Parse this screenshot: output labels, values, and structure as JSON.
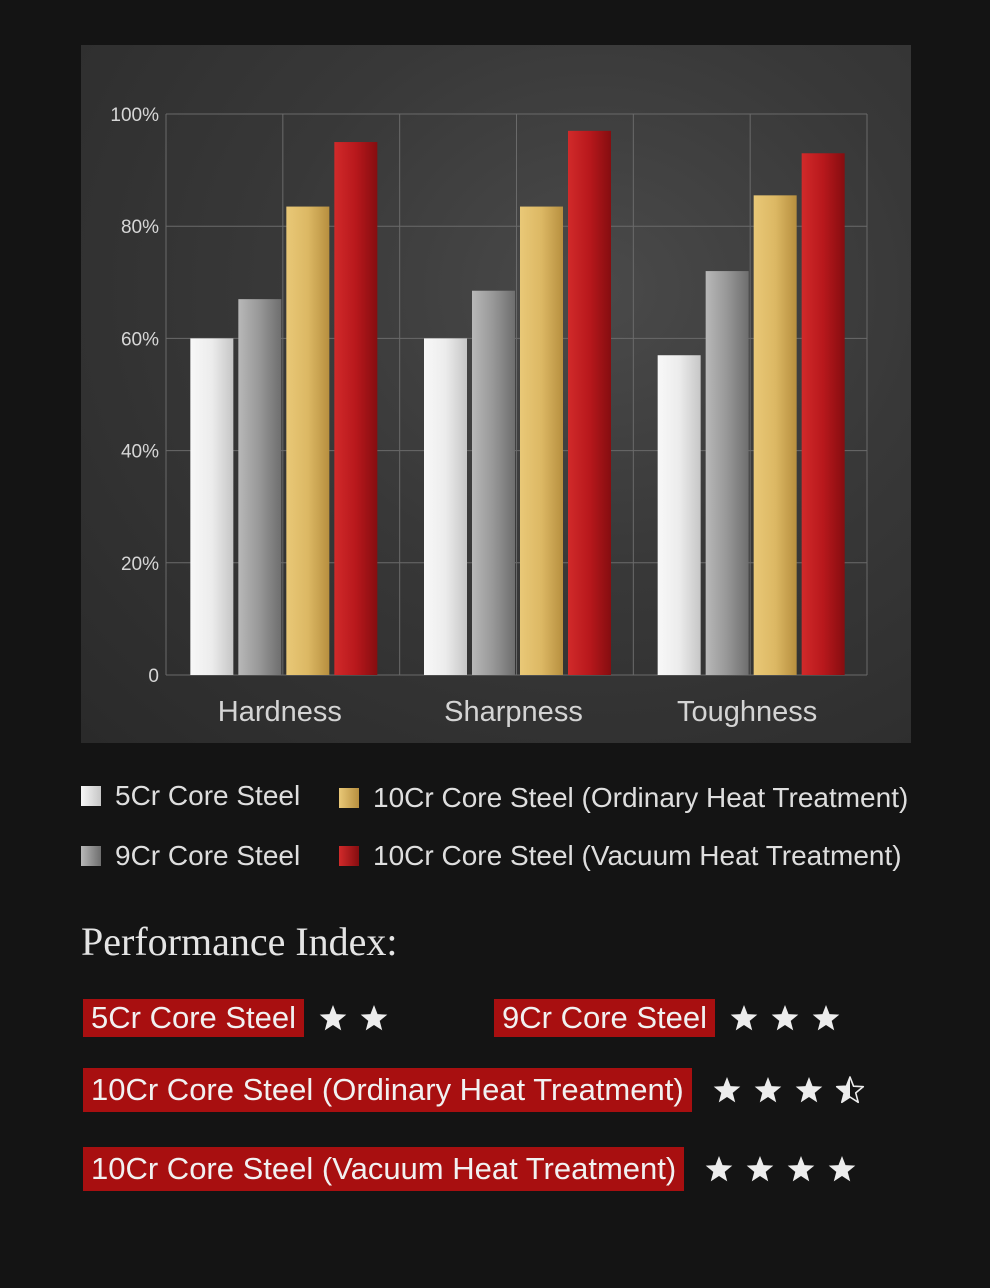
{
  "chart_data": {
    "type": "bar",
    "categories": [
      "Hardness",
      "Sharpness",
      "Toughness"
    ],
    "series": [
      {
        "name": "5Cr Core Steel",
        "values": [
          60,
          60,
          57
        ]
      },
      {
        "name": "9Cr Core Steel",
        "values": [
          67,
          68.5,
          72
        ]
      },
      {
        "name": "10Cr Core Steel (Ordinary Heat Treatment)",
        "values": [
          83.5,
          83.5,
          85.5
        ]
      },
      {
        "name": "10Cr Core Steel (Vacuum Heat Treatment)",
        "values": [
          95,
          97,
          93
        ]
      }
    ],
    "ylim": [
      0,
      100
    ],
    "yticks": [
      0,
      20,
      40,
      60,
      80,
      100
    ],
    "ytick_labels": [
      "0",
      "20%",
      "40%",
      "60%",
      "80%",
      "100%"
    ],
    "grid": true,
    "legend_position": "bottom"
  },
  "colors": {
    "5cr": "#e6e6e6",
    "9cr": "#9a9a9a",
    "10cr_ordinary": "#dcb864",
    "10cr_vacuum": "#b8181c",
    "label_background": "#a80f10"
  },
  "legend": [
    {
      "label": "5Cr Core Steel",
      "swatch": "5cr"
    },
    {
      "label": "10Cr Core Steel (Ordinary Heat Treatment)",
      "swatch": "10cr_ordinary"
    },
    {
      "label": "9Cr Core Steel",
      "swatch": "9cr"
    },
    {
      "label": "10Cr Core Steel (Vacuum Heat Treatment)",
      "swatch": "10cr_vacuum"
    }
  ],
  "performance": {
    "title": "Performance Index:",
    "items": [
      {
        "label": "5Cr Core Steel",
        "stars": 2
      },
      {
        "label": "9Cr Core Steel",
        "stars": 3
      },
      {
        "label": "10Cr Core Steel (Ordinary Heat Treatment)",
        "stars": 3.5
      },
      {
        "label": "10Cr Core Steel (Vacuum Heat Treatment)",
        "stars": 4
      }
    ]
  }
}
